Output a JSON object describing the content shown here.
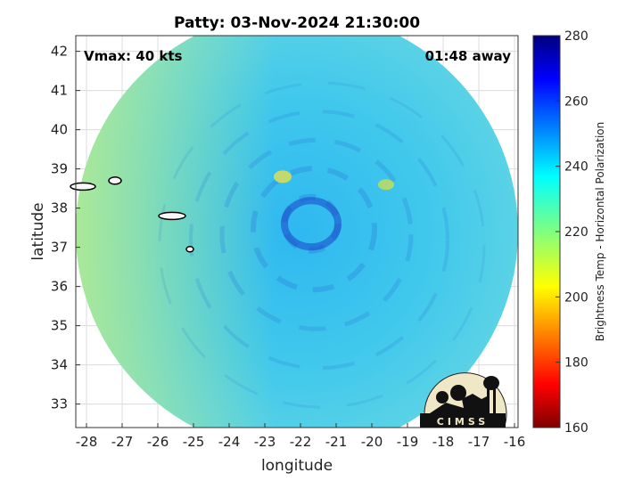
{
  "chart_data": {
    "type": "heatmap",
    "title": "Patty: 03-Nov-2024 21:30:00",
    "xlabel": "longitude",
    "ylabel": "latitude",
    "xlim": [
      -28.3,
      -15.9
    ],
    "ylim": [
      32.4,
      42.4
    ],
    "xticks": [
      -28,
      -27,
      -26,
      -25,
      -24,
      -23,
      -22,
      -21,
      -20,
      -19,
      -18,
      -17,
      -16
    ],
    "yticks": [
      33,
      34,
      35,
      36,
      37,
      38,
      39,
      40,
      41,
      42
    ],
    "grid": true,
    "annotations": {
      "vmax": "Vmax: 40 kts",
      "away": "01:48 away"
    },
    "colorbar": {
      "label": "Brightness Temp - Horizontal Polarization",
      "range": [
        160,
        280
      ],
      "ticks": [
        160,
        180,
        200,
        220,
        240,
        260,
        280
      ],
      "colormap": "jet"
    },
    "swath": {
      "center": [
        -22.1,
        37.4
      ],
      "radius_deg": 6.2
    },
    "storm_center": [
      -21.7,
      37.6
    ],
    "logo_text": "CIMSS"
  }
}
